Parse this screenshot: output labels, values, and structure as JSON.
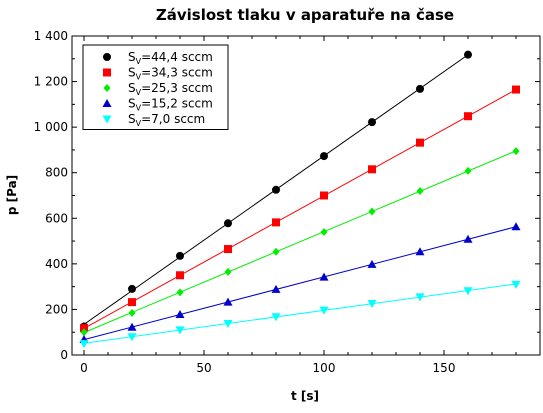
{
  "chart_data": {
    "type": "scatter",
    "title": "Závislost tlaku v aparatuře na čase",
    "xlabel": "t [s]",
    "ylabel": "p [Pa]",
    "xlim": [
      -5,
      190
    ],
    "ylim": [
      0,
      1400
    ],
    "xticks": [
      0,
      50,
      100,
      150
    ],
    "xtick_labels": [
      "0",
      "50",
      "100",
      "150"
    ],
    "yticks": [
      0,
      200,
      400,
      600,
      800,
      1000,
      1200,
      1400
    ],
    "ytick_labels": [
      "0",
      "200",
      "400",
      "600",
      "800",
      "1 000",
      "1 200",
      "1 400"
    ],
    "grid": false,
    "legend_position": "top-left",
    "series": [
      {
        "name": "SV=44,4 sccm",
        "label_main": "S",
        "label_sub": "V",
        "label_rest": "=44,4 sccm",
        "marker": "circle",
        "color": "#000000",
        "x": [
          0,
          20,
          40,
          60,
          80,
          100,
          120,
          140,
          160
        ],
        "y": [
          125,
          290,
          435,
          578,
          725,
          873,
          1022,
          1168,
          1318
        ]
      },
      {
        "name": "SV=34,3 sccm",
        "label_main": "S",
        "label_sub": "V",
        "label_rest": "=34,3 sccm",
        "marker": "square",
        "color": "#ff0000",
        "x": [
          0,
          20,
          40,
          60,
          80,
          100,
          120,
          140,
          160,
          180
        ],
        "y": [
          118,
          232,
          350,
          465,
          582,
          700,
          815,
          932,
          1048,
          1165
        ]
      },
      {
        "name": "SV=25,3 sccm",
        "label_main": "S",
        "label_sub": "V",
        "label_rest": "=25,3 sccm",
        "marker": "diamond",
        "color": "#00ee00",
        "x": [
          0,
          20,
          40,
          60,
          80,
          100,
          120,
          140,
          160,
          180
        ],
        "y": [
          100,
          185,
          275,
          365,
          453,
          540,
          630,
          720,
          808,
          895
        ]
      },
      {
        "name": "SV=15,2 sccm",
        "label_main": "S",
        "label_sub": "V",
        "label_rest": "=15,2 sccm",
        "marker": "triangle-up",
        "color": "#0000cc",
        "x": [
          0,
          20,
          40,
          60,
          80,
          100,
          120,
          140,
          160,
          180
        ],
        "y": [
          68,
          122,
          178,
          232,
          288,
          342,
          398,
          453,
          508,
          563
        ]
      },
      {
        "name": "SV=7,0 sccm",
        "label_main": "S",
        "label_sub": "V",
        "label_rest": "=7,0 sccm",
        "marker": "triangle-down",
        "color": "#00ffff",
        "x": [
          0,
          20,
          40,
          60,
          80,
          100,
          120,
          140,
          160,
          180
        ],
        "y": [
          50,
          80,
          110,
          138,
          168,
          197,
          226,
          255,
          282,
          310
        ]
      }
    ]
  }
}
